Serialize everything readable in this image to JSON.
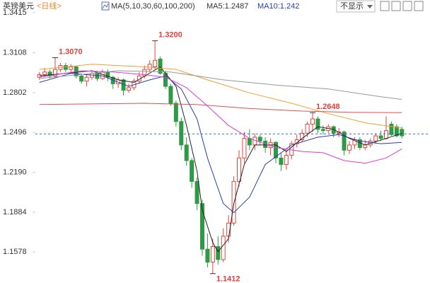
{
  "header": {
    "symbol": "英镑美元",
    "period": "<日线>",
    "ma_setting": "MA(5,10,30,60,100,200)",
    "ma5": "MA5:1.2487",
    "ma10": "MA10:1.242",
    "dropdown": "不显示"
  },
  "chart_data": {
    "type": "candlestick",
    "open": [
      1.292,
      1.294,
      1.296,
      1.293,
      1.298,
      1.301,
      1.298,
      1.3,
      1.293,
      1.289,
      1.292,
      1.295,
      1.291,
      1.296,
      1.292,
      1.287,
      1.29,
      1.282,
      1.284,
      1.289,
      1.293,
      1.298,
      1.3,
      1.306,
      1.295,
      1.285,
      1.272,
      1.258,
      1.24,
      1.228,
      1.212,
      1.195,
      1.16,
      1.15,
      1.162,
      1.152,
      1.17,
      1.18,
      1.212,
      1.23,
      1.245,
      1.24,
      1.246,
      1.243,
      1.238,
      1.242,
      1.23,
      1.225,
      1.232,
      1.241,
      1.244,
      1.249,
      1.256,
      1.26,
      1.252,
      1.251,
      1.254,
      1.249,
      1.25,
      1.236,
      1.24,
      1.244,
      1.238,
      1.24,
      1.243,
      1.247,
      1.245,
      1.256,
      1.254,
      1.252
    ],
    "high": [
      1.296,
      1.299,
      1.298,
      1.307,
      1.303,
      1.303,
      1.302,
      1.301,
      1.295,
      1.294,
      1.297,
      1.297,
      1.298,
      1.298,
      1.293,
      1.292,
      1.291,
      1.287,
      1.291,
      1.296,
      1.301,
      1.305,
      1.32,
      1.308,
      1.297,
      1.287,
      1.274,
      1.261,
      1.246,
      1.23,
      1.215,
      1.198,
      1.172,
      1.168,
      1.17,
      1.176,
      1.186,
      1.216,
      1.236,
      1.25,
      1.252,
      1.249,
      1.248,
      1.246,
      1.245,
      1.243,
      1.234,
      1.236,
      1.243,
      1.248,
      1.252,
      1.258,
      1.2648,
      1.262,
      1.255,
      1.256,
      1.255,
      1.253,
      1.251,
      1.243,
      1.246,
      1.246,
      1.244,
      1.245,
      1.249,
      1.251,
      1.262,
      1.258,
      1.256,
      1.254
    ],
    "low": [
      1.29,
      1.292,
      1.291,
      1.292,
      1.296,
      1.296,
      1.295,
      1.291,
      1.287,
      1.285,
      1.29,
      1.289,
      1.29,
      1.289,
      1.283,
      1.284,
      1.278,
      1.28,
      1.282,
      1.287,
      1.291,
      1.296,
      1.298,
      1.294,
      1.283,
      1.27,
      1.254,
      1.236,
      1.224,
      1.207,
      1.19,
      1.155,
      1.146,
      1.1412,
      1.148,
      1.15,
      1.165,
      1.178,
      1.208,
      1.226,
      1.236,
      1.236,
      1.24,
      1.234,
      1.232,
      1.226,
      1.22,
      1.221,
      1.229,
      1.238,
      1.242,
      1.246,
      1.25,
      1.249,
      1.248,
      1.249,
      1.246,
      1.246,
      1.232,
      1.233,
      1.237,
      1.236,
      1.236,
      1.238,
      1.241,
      1.243,
      1.244,
      1.247,
      1.246,
      1.245
    ],
    "close": [
      1.294,
      1.296,
      1.293,
      1.298,
      1.301,
      1.298,
      1.3,
      1.293,
      1.289,
      1.292,
      1.295,
      1.291,
      1.296,
      1.292,
      1.287,
      1.29,
      1.282,
      1.284,
      1.289,
      1.293,
      1.298,
      1.302,
      1.305,
      1.295,
      1.285,
      1.272,
      1.258,
      1.24,
      1.228,
      1.212,
      1.195,
      1.16,
      1.15,
      1.162,
      1.152,
      1.17,
      1.18,
      1.212,
      1.23,
      1.245,
      1.24,
      1.246,
      1.243,
      1.238,
      1.242,
      1.23,
      1.225,
      1.232,
      1.241,
      1.244,
      1.249,
      1.256,
      1.26,
      1.252,
      1.251,
      1.254,
      1.249,
      1.25,
      1.236,
      1.24,
      1.244,
      1.238,
      1.24,
      1.243,
      1.247,
      1.245,
      1.251,
      1.248,
      1.247,
      1.247
    ],
    "up_color": "#e0463c",
    "down_color": "#2f9a45",
    "ylim": [
      1.134,
      1.3448
    ],
    "yticks": [
      1.3415,
      1.3108,
      1.2802,
      1.2496,
      {
        "value": 1.219,
        "label": "1.2190"
      },
      1.1884,
      1.1578
    ],
    "grid": false,
    "last_price": 1.2485,
    "last_price_color": "#2f6fd0",
    "annotations": [
      {
        "value": 1.307,
        "label": "1.3070"
      },
      {
        "value": 1.32,
        "label": "1.3200"
      },
      {
        "value": 1.2648,
        "label": "1.2648"
      },
      {
        "value": 1.1412,
        "label": "1.1412"
      }
    ],
    "annotation_color": "#d9413a",
    "ma_lines": [
      {
        "color": "#222222",
        "x": [
          0,
          10,
          15,
          18,
          23,
          26,
          28,
          30,
          31,
          33,
          34,
          36,
          37,
          39,
          41,
          45,
          47,
          50,
          53,
          56,
          59,
          62,
          66,
          69
        ],
        "values": [
          1.293,
          1.297,
          1.29,
          1.288,
          1.3,
          1.285,
          1.255,
          1.22,
          1.19,
          1.165,
          1.158,
          1.168,
          1.195,
          1.225,
          1.24,
          1.24,
          1.235,
          1.245,
          1.254,
          1.252,
          1.245,
          1.24,
          1.245,
          1.249
        ]
      },
      {
        "color": "#2a3fa8",
        "x": [
          0,
          6,
          12,
          17,
          21,
          24,
          27,
          30,
          32,
          35,
          37,
          40,
          43,
          48,
          53,
          57,
          61,
          65,
          69
        ],
        "values": [
          1.288,
          1.295,
          1.293,
          1.285,
          1.29,
          1.293,
          1.283,
          1.26,
          1.23,
          1.195,
          1.188,
          1.2,
          1.225,
          1.24,
          1.246,
          1.248,
          1.243,
          1.241,
          1.242
        ]
      },
      {
        "color": "#e03ad6",
        "x": [
          0,
          8,
          14,
          20,
          24,
          28,
          32,
          36,
          40,
          45,
          50,
          54,
          58,
          62,
          66,
          69
        ],
        "values": [
          1.292,
          1.297,
          1.296,
          1.294,
          1.292,
          1.284,
          1.27,
          1.255,
          1.245,
          1.238,
          1.235,
          1.234,
          1.228,
          1.226,
          1.23,
          1.237
        ]
      },
      {
        "color": "#f0a030",
        "x": [
          0,
          10,
          20,
          26,
          32,
          40,
          48,
          55,
          62,
          69
        ],
        "values": [
          1.298,
          1.302,
          1.3,
          1.298,
          1.29,
          1.28,
          1.272,
          1.264,
          1.257,
          1.253
        ]
      },
      {
        "color": "#d9534f",
        "x": [
          0,
          20,
          30,
          40,
          50,
          60,
          69
        ],
        "values": [
          1.271,
          1.272,
          1.271,
          1.268,
          1.266,
          1.265,
          1.2648
        ]
      },
      {
        "color": "#999999",
        "x": [
          0,
          15,
          25,
          35,
          45,
          55,
          65,
          69
        ],
        "values": [
          1.291,
          1.297,
          1.296,
          1.29,
          1.286,
          1.283,
          1.277,
          1.275
        ]
      }
    ]
  }
}
